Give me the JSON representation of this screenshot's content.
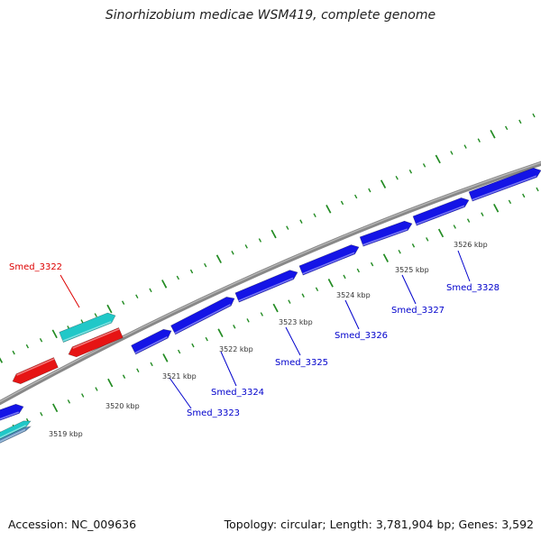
{
  "title": "Sinorhizobium medicae WSM419, complete genome",
  "accession": "Accession: NC_009636",
  "summary": "Topology: circular; Length: 3,781,904 bp; Genes: 3,592",
  "colors": {
    "forward_cds": "#1414e6",
    "reverse_cds": "#e61414",
    "rna": "#20c8c8",
    "backbone": "#888888",
    "gc_ticks": "#228b22",
    "label_forward": "#0000cc",
    "label_reverse": "#dd0000"
  },
  "ruler": [
    {
      "label": "3519 kbp"
    },
    {
      "label": "3520 kbp"
    },
    {
      "label": "3521 kbp"
    },
    {
      "label": "3522 kbp"
    },
    {
      "label": "3523 kbp"
    },
    {
      "label": "3524 kbp"
    },
    {
      "label": "3525 kbp"
    },
    {
      "label": "3526 kbp"
    }
  ],
  "genes": [
    {
      "name": "Smed_3322",
      "strand": "reverse"
    },
    {
      "name": "Smed_3323",
      "strand": "forward"
    },
    {
      "name": "Smed_3324",
      "strand": "forward"
    },
    {
      "name": "Smed_3325",
      "strand": "forward"
    },
    {
      "name": "Smed_3326",
      "strand": "forward"
    },
    {
      "name": "Smed_3327",
      "strand": "forward"
    },
    {
      "name": "Smed_3328",
      "strand": "forward"
    }
  ]
}
